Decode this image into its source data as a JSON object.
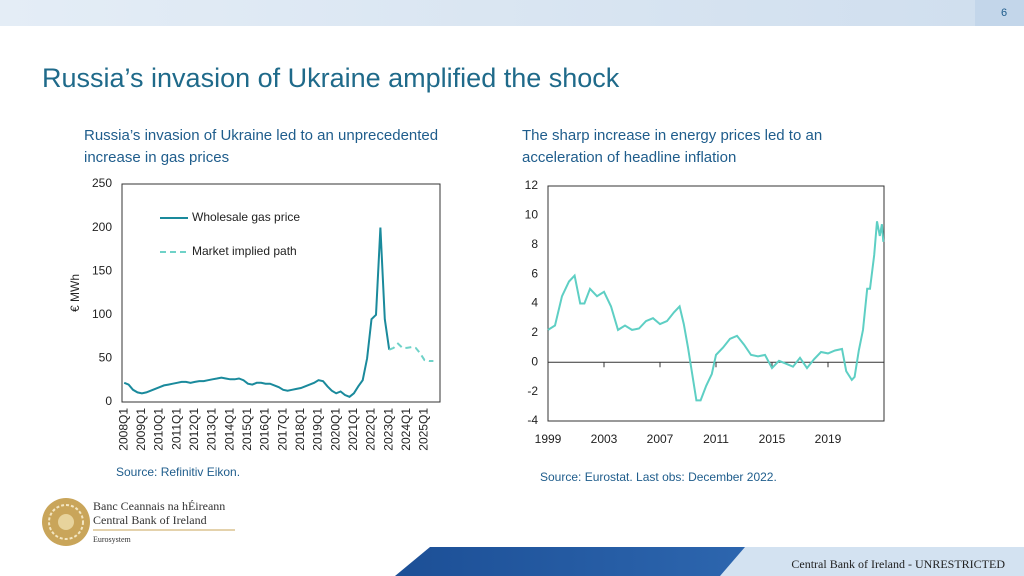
{
  "page_number": "6",
  "title": "Russia’s invasion of Ukraine amplified the shock",
  "chart_data": [
    {
      "type": "line",
      "title": "Russia’s invasion of Ukraine led to an unprecedented increase in gas prices",
      "y_label": "€ MWh",
      "source": "Source: Refinitiv Eikon.",
      "categories": [
        "2008Q1",
        null,
        null,
        null,
        "2009Q1",
        null,
        null,
        null,
        "2010Q1",
        null,
        null,
        null,
        "2011Q1",
        null,
        null,
        null,
        "2012Q1",
        null,
        null,
        null,
        "2013Q1",
        null,
        null,
        null,
        "2014Q1",
        null,
        null,
        null,
        "2015Q1",
        null,
        null,
        null,
        "2016Q1",
        null,
        null,
        null,
        "2017Q1",
        null,
        null,
        null,
        "2018Q1",
        null,
        null,
        null,
        "2019Q1",
        null,
        null,
        null,
        "2020Q1",
        null,
        null,
        null,
        "2021Q1",
        null,
        null,
        null,
        "2022Q1",
        null,
        null,
        null,
        "2023Q1",
        null,
        null,
        null,
        "2024Q1",
        null,
        null,
        null,
        "2025Q1",
        null,
        null,
        null
      ],
      "series": [
        {
          "name": "Wholesale gas price",
          "color": "#1a8a9c",
          "style": "solid",
          "values": [
            22,
            20,
            14,
            11,
            10,
            11,
            13,
            15,
            17,
            19,
            20,
            21,
            22,
            23,
            23,
            22,
            23,
            24,
            24,
            25,
            26,
            27,
            28,
            27,
            26,
            26,
            27,
            25,
            21,
            20,
            22,
            22,
            21,
            21,
            19,
            17,
            14,
            13,
            14,
            15,
            16,
            18,
            20,
            22,
            25,
            24,
            18,
            13,
            10,
            12,
            8,
            6,
            10,
            18,
            25,
            50,
            95,
            100,
            200,
            95,
            60,
            null,
            null,
            null,
            null,
            null,
            null,
            null,
            null,
            null,
            null,
            null
          ]
        },
        {
          "name": "Market implied path",
          "color": "#6fd2c8",
          "style": "dashed",
          "values": [
            null,
            null,
            null,
            null,
            null,
            null,
            null,
            null,
            null,
            null,
            null,
            null,
            null,
            null,
            null,
            null,
            null,
            null,
            null,
            null,
            null,
            null,
            null,
            null,
            null,
            null,
            null,
            null,
            null,
            null,
            null,
            null,
            null,
            null,
            null,
            null,
            null,
            null,
            null,
            null,
            null,
            null,
            null,
            null,
            null,
            null,
            null,
            null,
            null,
            null,
            null,
            null,
            null,
            null,
            null,
            null,
            null,
            null,
            null,
            null,
            60,
            62,
            67,
            62,
            62,
            63,
            62,
            56,
            48,
            47,
            47,
            null
          ]
        }
      ],
      "ylim": [
        0,
        250
      ],
      "yticks": [
        0,
        50,
        100,
        150,
        200,
        250
      ],
      "legend": "upper left",
      "grid": false
    },
    {
      "type": "line",
      "title": "The sharp increase in energy prices led to an acceleration of headline inflation",
      "source": "Source: Eurostat. Last obs: December 2022.",
      "x": [
        1999,
        1999.5,
        2000,
        2000.5,
        2000.9,
        2001.3,
        2001.6,
        2002,
        2002.5,
        2003,
        2003.5,
        2004,
        2004.5,
        2005,
        2005.5,
        2006,
        2006.5,
        2007,
        2007.5,
        2008,
        2008.4,
        2008.7,
        2009,
        2009.3,
        2009.6,
        2009.9,
        2010.3,
        2010.7,
        2011,
        2011.5,
        2012,
        2012.5,
        2013,
        2013.5,
        2014,
        2014.5,
        2015,
        2015.5,
        2016,
        2016.5,
        2017,
        2017.5,
        2018,
        2018.5,
        2019,
        2019.5,
        2020,
        2020.3,
        2020.7,
        2020.9,
        2021.2,
        2021.5,
        2021.8,
        2022,
        2022.3,
        2022.5,
        2022.7,
        2022.85,
        2022.95
      ],
      "values": [
        2.2,
        2.5,
        4.5,
        5.5,
        5.9,
        4.0,
        4.0,
        5.0,
        4.5,
        4.8,
        3.8,
        2.2,
        2.5,
        2.2,
        2.3,
        2.8,
        3.0,
        2.6,
        2.8,
        3.4,
        3.8,
        2.6,
        1.0,
        -0.8,
        -2.6,
        -2.6,
        -1.6,
        -0.8,
        0.5,
        1.0,
        1.6,
        1.8,
        1.2,
        0.5,
        0.4,
        0.5,
        -0.4,
        0.1,
        -0.1,
        -0.3,
        0.3,
        -0.4,
        0.2,
        0.7,
        0.6,
        0.8,
        0.9,
        -0.6,
        -1.2,
        -1.0,
        0.8,
        2.2,
        5.0,
        5.0,
        7.3,
        9.6,
        8.6,
        9.4,
        8.2
      ],
      "color": "#5ecfc4",
      "xlim": [
        1999,
        2023
      ],
      "xticks": [
        1999,
        2003,
        2007,
        2011,
        2015,
        2019
      ],
      "ylim": [
        -4,
        12
      ],
      "yticks": [
        -4,
        -2,
        0,
        2,
        4,
        6,
        8,
        10,
        12
      ],
      "zero_line": true,
      "grid": false
    }
  ],
  "logo": {
    "line1": "Banc Ceannais na hÉireann",
    "line2": "Central Bank of Ireland",
    "line3": "Eurosystem"
  },
  "footer": "Central Bank of Ireland - UNRESTRICTED"
}
